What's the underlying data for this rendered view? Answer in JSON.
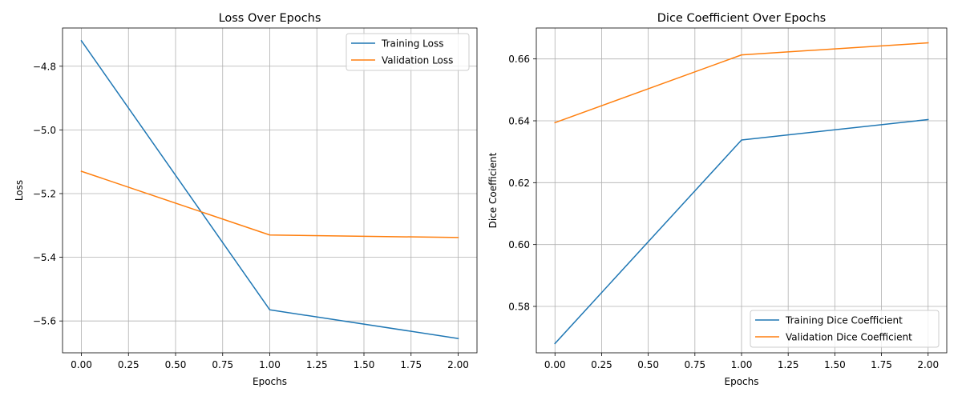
{
  "chart_data": [
    {
      "type": "line",
      "title": "Loss Over Epochs",
      "xlabel": "Epochs",
      "ylabel": "Loss",
      "xlim": [
        -0.1,
        2.1
      ],
      "ylim": [
        -5.7,
        -4.68
      ],
      "xticks": [
        0.0,
        0.25,
        0.5,
        0.75,
        1.0,
        1.25,
        1.5,
        1.75,
        2.0
      ],
      "xtick_labels": [
        "0.00",
        "0.25",
        "0.50",
        "0.75",
        "1.00",
        "1.25",
        "1.50",
        "1.75",
        "2.00"
      ],
      "yticks": [
        -4.8,
        -5.0,
        -5.2,
        -5.4,
        -5.6
      ],
      "ytick_labels": [
        "−4.8",
        "−5.0",
        "−5.2",
        "−5.4",
        "−5.6"
      ],
      "grid": true,
      "legend_position": "top-right",
      "x": [
        0,
        1,
        2
      ],
      "series": [
        {
          "name": "Training Loss",
          "values": [
            -4.72,
            -5.565,
            -5.655
          ],
          "color": "#1f77b4"
        },
        {
          "name": "Validation Loss",
          "values": [
            -5.13,
            -5.33,
            -5.338
          ],
          "color": "#ff7f0e"
        }
      ]
    },
    {
      "type": "line",
      "title": "Dice Coefficient Over Epochs",
      "xlabel": "Epochs",
      "ylabel": "Dice Coefficient",
      "xlim": [
        -0.1,
        2.1
      ],
      "ylim": [
        0.565,
        0.67
      ],
      "xticks": [
        0.0,
        0.25,
        0.5,
        0.75,
        1.0,
        1.25,
        1.5,
        1.75,
        2.0
      ],
      "xtick_labels": [
        "0.00",
        "0.25",
        "0.50",
        "0.75",
        "1.00",
        "1.25",
        "1.50",
        "1.75",
        "2.00"
      ],
      "yticks": [
        0.58,
        0.6,
        0.62,
        0.64,
        0.66
      ],
      "ytick_labels": [
        "0.58",
        "0.60",
        "0.62",
        "0.64",
        "0.66"
      ],
      "grid": true,
      "legend_position": "bottom-right",
      "x": [
        0,
        1,
        2
      ],
      "series": [
        {
          "name": "Training Dice Coefficient",
          "values": [
            0.568,
            0.6338,
            0.6404
          ],
          "color": "#1f77b4"
        },
        {
          "name": "Validation Dice Coefficient",
          "values": [
            0.6394,
            0.6613,
            0.6652
          ],
          "color": "#ff7f0e"
        }
      ]
    }
  ]
}
